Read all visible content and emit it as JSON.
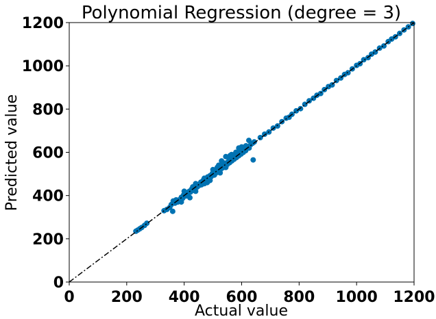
{
  "chart_data": {
    "type": "scatter",
    "title": "Polynomial Regression (degree = 3)",
    "xlabel": "Actual value",
    "ylabel": "Predicted value",
    "xlim": [
      0,
      1200
    ],
    "ylim": [
      0,
      1200
    ],
    "xticks": [
      0,
      200,
      400,
      600,
      800,
      1000,
      1200
    ],
    "yticks": [
      0,
      200,
      400,
      600,
      800,
      1000,
      1200
    ],
    "grid": false,
    "reference_line": {
      "from": [
        0,
        0
      ],
      "to": [
        1200,
        1200
      ],
      "style": "dash-dot",
      "color": "#000000"
    },
    "point_color": "#0072b2",
    "points": [
      [
        232,
        235
      ],
      [
        238,
        240
      ],
      [
        245,
        246
      ],
      [
        252,
        252
      ],
      [
        262,
        262
      ],
      [
        270,
        272
      ],
      [
        330,
        330
      ],
      [
        340,
        336
      ],
      [
        350,
        345
      ],
      [
        355,
        358
      ],
      [
        362,
        375
      ],
      [
        368,
        365
      ],
      [
        372,
        380
      ],
      [
        378,
        370
      ],
      [
        385,
        382
      ],
      [
        390,
        392
      ],
      [
        395,
        388
      ],
      [
        398,
        402
      ],
      [
        402,
        406
      ],
      [
        406,
        398
      ],
      [
        410,
        414
      ],
      [
        414,
        408
      ],
      [
        418,
        420
      ],
      [
        422,
        416
      ],
      [
        426,
        430
      ],
      [
        430,
        424
      ],
      [
        434,
        436
      ],
      [
        438,
        432
      ],
      [
        442,
        446
      ],
      [
        446,
        440
      ],
      [
        450,
        452
      ],
      [
        454,
        448
      ],
      [
        458,
        462
      ],
      [
        462,
        456
      ],
      [
        466,
        470
      ],
      [
        470,
        464
      ],
      [
        474,
        476
      ],
      [
        478,
        472
      ],
      [
        482,
        486
      ],
      [
        486,
        480
      ],
      [
        490,
        492
      ],
      [
        494,
        488
      ],
      [
        498,
        502
      ],
      [
        502,
        496
      ],
      [
        506,
        510
      ],
      [
        510,
        504
      ],
      [
        514,
        518
      ],
      [
        518,
        512
      ],
      [
        522,
        526
      ],
      [
        526,
        520
      ],
      [
        530,
        534
      ],
      [
        534,
        528
      ],
      [
        538,
        542
      ],
      [
        542,
        536
      ],
      [
        546,
        550
      ],
      [
        550,
        544
      ],
      [
        554,
        558
      ],
      [
        558,
        552
      ],
      [
        562,
        566
      ],
      [
        566,
        560
      ],
      [
        570,
        574
      ],
      [
        574,
        568
      ],
      [
        578,
        582
      ],
      [
        582,
        576
      ],
      [
        586,
        590
      ],
      [
        590,
        584
      ],
      [
        594,
        598
      ],
      [
        598,
        592
      ],
      [
        602,
        606
      ],
      [
        606,
        600
      ],
      [
        610,
        614
      ],
      [
        614,
        608
      ],
      [
        620,
        624
      ],
      [
        626,
        620
      ],
      [
        632,
        636
      ],
      [
        638,
        642
      ],
      [
        644,
        648
      ],
      [
        360,
        327
      ],
      [
        440,
        455
      ],
      [
        450,
        450
      ],
      [
        460,
        450
      ],
      [
        470,
        455
      ],
      [
        480,
        460
      ],
      [
        420,
        390
      ],
      [
        500,
        520
      ],
      [
        520,
        540
      ],
      [
        540,
        550
      ],
      [
        555,
        575
      ],
      [
        565,
        590
      ],
      [
        580,
        600
      ],
      [
        590,
        620
      ],
      [
        600,
        625
      ],
      [
        615,
        630
      ],
      [
        625,
        655
      ],
      [
        640,
        565
      ],
      [
        530,
        560
      ],
      [
        545,
        580
      ],
      [
        560,
        585
      ],
      [
        490,
        470
      ],
      [
        505,
        495
      ],
      [
        515,
        530
      ],
      [
        525,
        505
      ],
      [
        535,
        545
      ],
      [
        545,
        530
      ],
      [
        470,
        480
      ],
      [
        480,
        470
      ],
      [
        430,
        440
      ],
      [
        440,
        420
      ],
      [
        400,
        420
      ],
      [
        390,
        370
      ],
      [
        665,
        668
      ],
      [
        680,
        684
      ],
      [
        695,
        694
      ],
      [
        710,
        712
      ],
      [
        725,
        722
      ],
      [
        740,
        742
      ],
      [
        755,
        758
      ],
      [
        765,
        762
      ],
      [
        775,
        776
      ],
      [
        790,
        792
      ],
      [
        805,
        802
      ],
      [
        820,
        822
      ],
      [
        835,
        838
      ],
      [
        850,
        850
      ],
      [
        862,
        864
      ],
      [
        875,
        872
      ],
      [
        888,
        890
      ],
      [
        902,
        904
      ],
      [
        915,
        912
      ],
      [
        930,
        932
      ],
      [
        945,
        944
      ],
      [
        958,
        960
      ],
      [
        970,
        968
      ],
      [
        985,
        986
      ],
      [
        1000,
        1002
      ],
      [
        1012,
        1010
      ],
      [
        1025,
        1028
      ],
      [
        1040,
        1038
      ],
      [
        1052,
        1054
      ],
      [
        1065,
        1064
      ],
      [
        1080,
        1082
      ],
      [
        1095,
        1092
      ],
      [
        1110,
        1112
      ],
      [
        1122,
        1124
      ],
      [
        1135,
        1134
      ],
      [
        1150,
        1150
      ],
      [
        1165,
        1166
      ],
      [
        1180,
        1180
      ],
      [
        1195,
        1196
      ]
    ]
  }
}
